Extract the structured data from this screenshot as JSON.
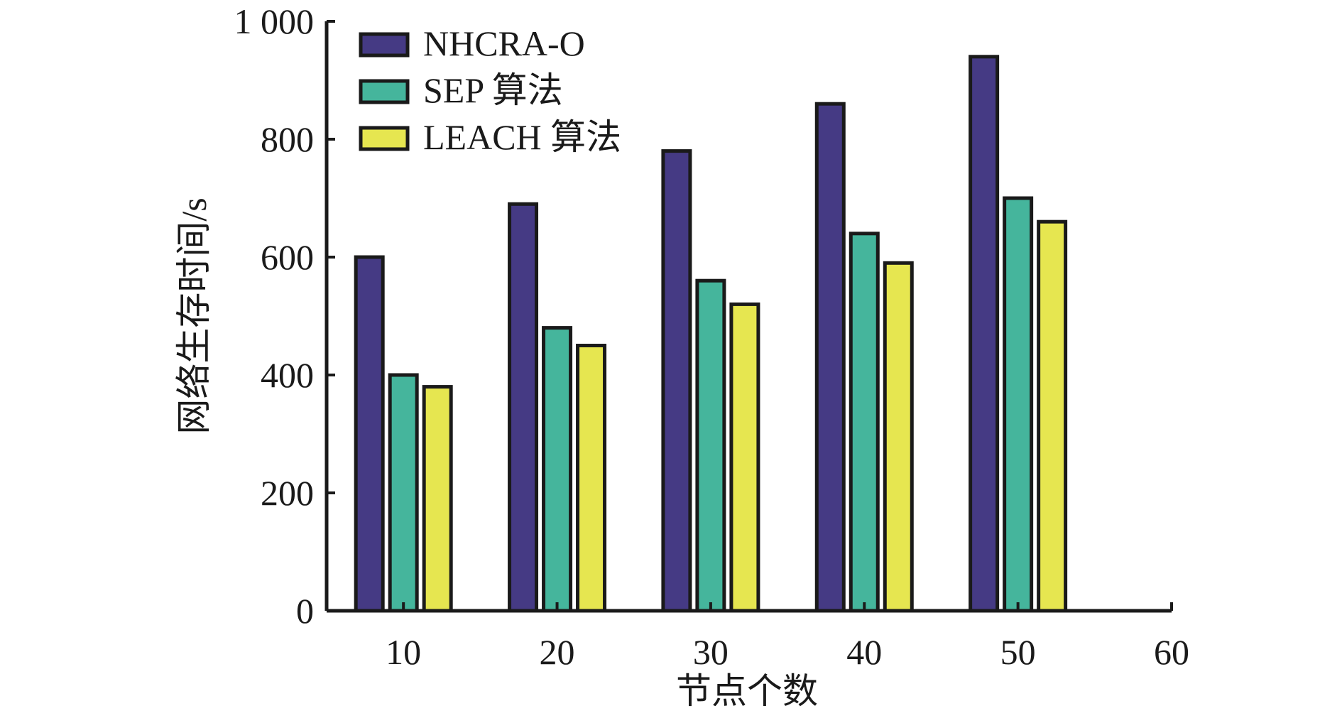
{
  "chart_data": {
    "type": "bar",
    "title": "",
    "xlabel": "节点个数",
    "ylabel": "网络生存时间/s",
    "categories": [
      "10",
      "20",
      "30",
      "40",
      "50"
    ],
    "x_ticks": [
      "10",
      "20",
      "30",
      "40",
      "50",
      "60"
    ],
    "y_ticks": [
      "0",
      "200",
      "400",
      "600",
      "800",
      "1 000"
    ],
    "xlim": [
      5,
      60
    ],
    "ylim": [
      0,
      1000
    ],
    "grid": false,
    "legend_position": "top-left",
    "series": [
      {
        "name": "NHCRA-O",
        "color": "#453a84",
        "values": [
          600,
          690,
          780,
          860,
          940
        ]
      },
      {
        "name": "SEP 算法",
        "color": "#45b59c",
        "values": [
          400,
          480,
          560,
          640,
          700
        ]
      },
      {
        "name": "LEACH 算法",
        "color": "#e6e650",
        "values": [
          380,
          450,
          520,
          590,
          660
        ]
      }
    ]
  }
}
